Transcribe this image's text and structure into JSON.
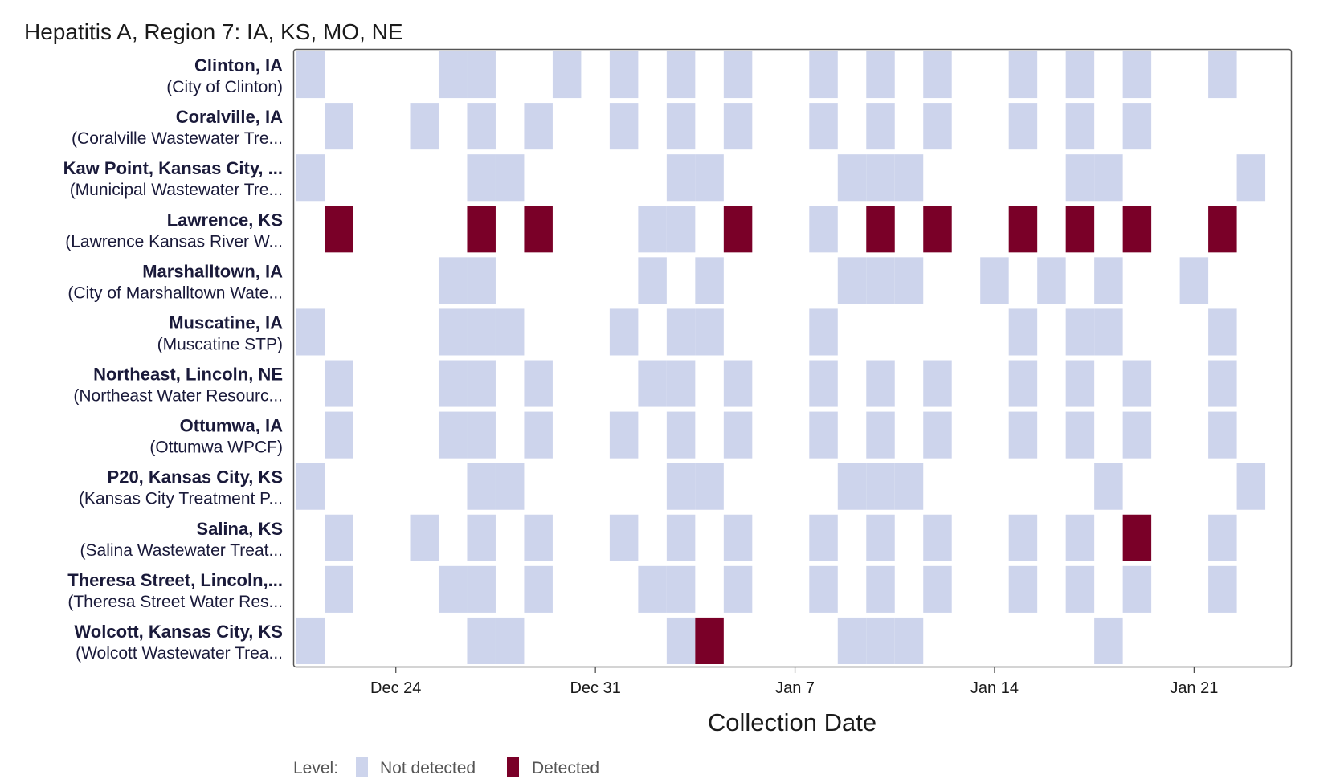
{
  "chart_data": {
    "type": "heatmap",
    "title": "Hepatitis A, Region 7: IA, KS, MO, NE",
    "xlabel": "Collection Date",
    "ylabel": "",
    "x_axis": {
      "range_days": [
        -3.6,
        31.4
      ],
      "range_note": "days relative to Dec 24",
      "ticks": [
        {
          "label": "Dec 24",
          "day": 0
        },
        {
          "label": "Dec 31",
          "day": 7
        },
        {
          "label": "Jan 7",
          "day": 14
        },
        {
          "label": "Jan 14",
          "day": 21
        },
        {
          "label": "Jan 21",
          "day": 28
        }
      ]
    },
    "legend": {
      "title": "Level:",
      "position": "bottom-left",
      "items": [
        {
          "key": "not_detected",
          "label": "Not detected",
          "color": "#cdd4ec"
        },
        {
          "key": "detected",
          "label": "Detected",
          "color": "#7a0028"
        }
      ]
    },
    "sites": [
      {
        "name": "Clinton, IA",
        "facility": "(City of Clinton)",
        "samples": [
          {
            "day": -3,
            "level": "not_detected"
          },
          {
            "day": 2,
            "level": "not_detected"
          },
          {
            "day": 3,
            "level": "not_detected"
          },
          {
            "day": 6,
            "level": "not_detected"
          },
          {
            "day": 8,
            "level": "not_detected"
          },
          {
            "day": 10,
            "level": "not_detected"
          },
          {
            "day": 12,
            "level": "not_detected"
          },
          {
            "day": 15,
            "level": "not_detected"
          },
          {
            "day": 17,
            "level": "not_detected"
          },
          {
            "day": 19,
            "level": "not_detected"
          },
          {
            "day": 22,
            "level": "not_detected"
          },
          {
            "day": 24,
            "level": "not_detected"
          },
          {
            "day": 26,
            "level": "not_detected"
          },
          {
            "day": 29,
            "level": "not_detected"
          }
        ]
      },
      {
        "name": "Coralville, IA",
        "facility": "(Coralville Wastewater Tre...",
        "samples": [
          {
            "day": -2,
            "level": "not_detected"
          },
          {
            "day": 1,
            "level": "not_detected"
          },
          {
            "day": 3,
            "level": "not_detected"
          },
          {
            "day": 5,
            "level": "not_detected"
          },
          {
            "day": 8,
            "level": "not_detected"
          },
          {
            "day": 10,
            "level": "not_detected"
          },
          {
            "day": 12,
            "level": "not_detected"
          },
          {
            "day": 15,
            "level": "not_detected"
          },
          {
            "day": 17,
            "level": "not_detected"
          },
          {
            "day": 19,
            "level": "not_detected"
          },
          {
            "day": 22,
            "level": "not_detected"
          },
          {
            "day": 24,
            "level": "not_detected"
          },
          {
            "day": 26,
            "level": "not_detected"
          }
        ]
      },
      {
        "name": "Kaw Point, Kansas City, ...",
        "facility": "(Municipal Wastewater Tre...",
        "samples": [
          {
            "day": -3,
            "level": "not_detected"
          },
          {
            "day": 3,
            "level": "not_detected"
          },
          {
            "day": 4,
            "level": "not_detected"
          },
          {
            "day": 10,
            "level": "not_detected"
          },
          {
            "day": 11,
            "level": "not_detected"
          },
          {
            "day": 16,
            "level": "not_detected"
          },
          {
            "day": 17,
            "level": "not_detected"
          },
          {
            "day": 18,
            "level": "not_detected"
          },
          {
            "day": 24,
            "level": "not_detected"
          },
          {
            "day": 25,
            "level": "not_detected"
          },
          {
            "day": 30,
            "level": "not_detected"
          }
        ]
      },
      {
        "name": "Lawrence, KS",
        "facility": "(Lawrence Kansas River W...",
        "samples": [
          {
            "day": -2,
            "level": "detected"
          },
          {
            "day": 3,
            "level": "detected"
          },
          {
            "day": 5,
            "level": "detected"
          },
          {
            "day": 9,
            "level": "not_detected"
          },
          {
            "day": 10,
            "level": "not_detected"
          },
          {
            "day": 12,
            "level": "detected"
          },
          {
            "day": 15,
            "level": "not_detected"
          },
          {
            "day": 17,
            "level": "detected"
          },
          {
            "day": 19,
            "level": "detected"
          },
          {
            "day": 22,
            "level": "detected"
          },
          {
            "day": 24,
            "level": "detected"
          },
          {
            "day": 26,
            "level": "detected"
          },
          {
            "day": 29,
            "level": "detected"
          }
        ]
      },
      {
        "name": "Marshalltown, IA",
        "facility": "(City of Marshalltown Wate...",
        "samples": [
          {
            "day": 2,
            "level": "not_detected"
          },
          {
            "day": 3,
            "level": "not_detected"
          },
          {
            "day": 9,
            "level": "not_detected"
          },
          {
            "day": 11,
            "level": "not_detected"
          },
          {
            "day": 16,
            "level": "not_detected"
          },
          {
            "day": 17,
            "level": "not_detected"
          },
          {
            "day": 18,
            "level": "not_detected"
          },
          {
            "day": 21,
            "level": "not_detected"
          },
          {
            "day": 23,
            "level": "not_detected"
          },
          {
            "day": 25,
            "level": "not_detected"
          },
          {
            "day": 28,
            "level": "not_detected"
          }
        ]
      },
      {
        "name": "Muscatine, IA",
        "facility": "(Muscatine STP)",
        "samples": [
          {
            "day": -3,
            "level": "not_detected"
          },
          {
            "day": 2,
            "level": "not_detected"
          },
          {
            "day": 3,
            "level": "not_detected"
          },
          {
            "day": 4,
            "level": "not_detected"
          },
          {
            "day": 8,
            "level": "not_detected"
          },
          {
            "day": 10,
            "level": "not_detected"
          },
          {
            "day": 11,
            "level": "not_detected"
          },
          {
            "day": 15,
            "level": "not_detected"
          },
          {
            "day": 22,
            "level": "not_detected"
          },
          {
            "day": 24,
            "level": "not_detected"
          },
          {
            "day": 25,
            "level": "not_detected"
          },
          {
            "day": 29,
            "level": "not_detected"
          }
        ]
      },
      {
        "name": "Northeast, Lincoln, NE",
        "facility": "(Northeast Water Resourc...",
        "samples": [
          {
            "day": -2,
            "level": "not_detected"
          },
          {
            "day": 2,
            "level": "not_detected"
          },
          {
            "day": 3,
            "level": "not_detected"
          },
          {
            "day": 5,
            "level": "not_detected"
          },
          {
            "day": 9,
            "level": "not_detected"
          },
          {
            "day": 10,
            "level": "not_detected"
          },
          {
            "day": 12,
            "level": "not_detected"
          },
          {
            "day": 15,
            "level": "not_detected"
          },
          {
            "day": 17,
            "level": "not_detected"
          },
          {
            "day": 19,
            "level": "not_detected"
          },
          {
            "day": 22,
            "level": "not_detected"
          },
          {
            "day": 24,
            "level": "not_detected"
          },
          {
            "day": 26,
            "level": "not_detected"
          },
          {
            "day": 29,
            "level": "not_detected"
          }
        ]
      },
      {
        "name": "Ottumwa, IA",
        "facility": "(Ottumwa WPCF)",
        "samples": [
          {
            "day": -2,
            "level": "not_detected"
          },
          {
            "day": 2,
            "level": "not_detected"
          },
          {
            "day": 3,
            "level": "not_detected"
          },
          {
            "day": 5,
            "level": "not_detected"
          },
          {
            "day": 8,
            "level": "not_detected"
          },
          {
            "day": 10,
            "level": "not_detected"
          },
          {
            "day": 12,
            "level": "not_detected"
          },
          {
            "day": 15,
            "level": "not_detected"
          },
          {
            "day": 17,
            "level": "not_detected"
          },
          {
            "day": 19,
            "level": "not_detected"
          },
          {
            "day": 22,
            "level": "not_detected"
          },
          {
            "day": 24,
            "level": "not_detected"
          },
          {
            "day": 26,
            "level": "not_detected"
          },
          {
            "day": 29,
            "level": "not_detected"
          }
        ]
      },
      {
        "name": "P20, Kansas City, KS",
        "facility": "(Kansas City Treatment P...",
        "samples": [
          {
            "day": -3,
            "level": "not_detected"
          },
          {
            "day": 3,
            "level": "not_detected"
          },
          {
            "day": 4,
            "level": "not_detected"
          },
          {
            "day": 10,
            "level": "not_detected"
          },
          {
            "day": 11,
            "level": "not_detected"
          },
          {
            "day": 16,
            "level": "not_detected"
          },
          {
            "day": 17,
            "level": "not_detected"
          },
          {
            "day": 18,
            "level": "not_detected"
          },
          {
            "day": 25,
            "level": "not_detected"
          },
          {
            "day": 30,
            "level": "not_detected"
          }
        ]
      },
      {
        "name": "Salina, KS",
        "facility": "(Salina Wastewater Treat...",
        "samples": [
          {
            "day": -2,
            "level": "not_detected"
          },
          {
            "day": 1,
            "level": "not_detected"
          },
          {
            "day": 3,
            "level": "not_detected"
          },
          {
            "day": 5,
            "level": "not_detected"
          },
          {
            "day": 8,
            "level": "not_detected"
          },
          {
            "day": 10,
            "level": "not_detected"
          },
          {
            "day": 12,
            "level": "not_detected"
          },
          {
            "day": 15,
            "level": "not_detected"
          },
          {
            "day": 17,
            "level": "not_detected"
          },
          {
            "day": 19,
            "level": "not_detected"
          },
          {
            "day": 22,
            "level": "not_detected"
          },
          {
            "day": 24,
            "level": "not_detected"
          },
          {
            "day": 26,
            "level": "detected"
          },
          {
            "day": 29,
            "level": "not_detected"
          }
        ]
      },
      {
        "name": "Theresa Street, Lincoln,...",
        "facility": "(Theresa Street Water Res...",
        "samples": [
          {
            "day": -2,
            "level": "not_detected"
          },
          {
            "day": 2,
            "level": "not_detected"
          },
          {
            "day": 3,
            "level": "not_detected"
          },
          {
            "day": 5,
            "level": "not_detected"
          },
          {
            "day": 9,
            "level": "not_detected"
          },
          {
            "day": 10,
            "level": "not_detected"
          },
          {
            "day": 12,
            "level": "not_detected"
          },
          {
            "day": 15,
            "level": "not_detected"
          },
          {
            "day": 17,
            "level": "not_detected"
          },
          {
            "day": 19,
            "level": "not_detected"
          },
          {
            "day": 22,
            "level": "not_detected"
          },
          {
            "day": 24,
            "level": "not_detected"
          },
          {
            "day": 26,
            "level": "not_detected"
          },
          {
            "day": 29,
            "level": "not_detected"
          }
        ]
      },
      {
        "name": "Wolcott, Kansas City, KS",
        "facility": "(Wolcott Wastewater Trea...",
        "samples": [
          {
            "day": -3,
            "level": "not_detected"
          },
          {
            "day": 3,
            "level": "not_detected"
          },
          {
            "day": 4,
            "level": "not_detected"
          },
          {
            "day": 10,
            "level": "not_detected"
          },
          {
            "day": 11,
            "level": "detected"
          },
          {
            "day": 16,
            "level": "not_detected"
          },
          {
            "day": 17,
            "level": "not_detected"
          },
          {
            "day": 18,
            "level": "not_detected"
          },
          {
            "day": 25,
            "level": "not_detected"
          }
        ]
      }
    ]
  }
}
